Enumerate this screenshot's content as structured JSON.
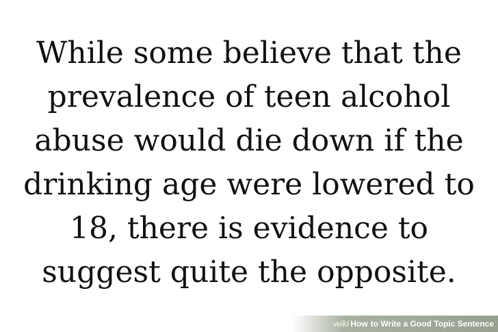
{
  "quote": {
    "lines": [
      "While some believe that the",
      "prevalence of teen alcohol",
      "abuse would die down if the",
      "drinking age were lowered to",
      "18, there is evidence to",
      "suggest quite the opposite."
    ]
  },
  "watermark": {
    "brand": "wiki",
    "how": "How",
    "title": "to Write a Good Topic Sentence"
  }
}
